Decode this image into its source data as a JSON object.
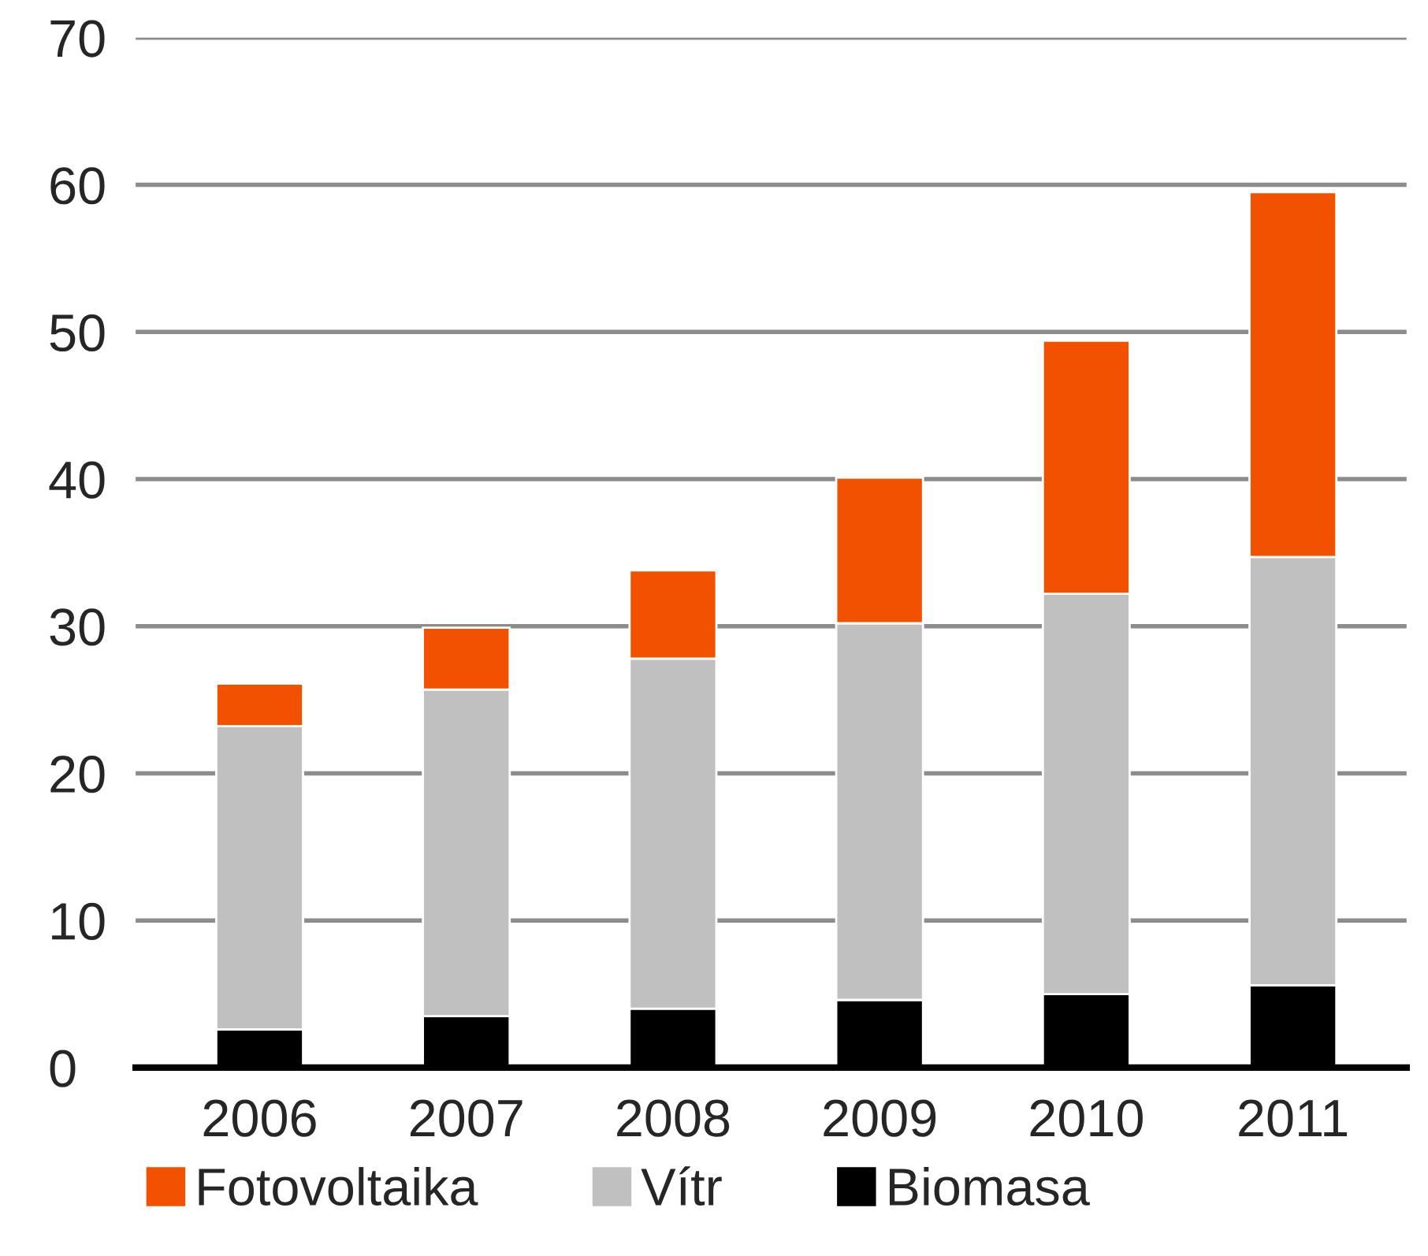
{
  "chart_data": {
    "type": "bar",
    "stacked": true,
    "categories": [
      "2006",
      "2007",
      "2008",
      "2009",
      "2010",
      "2011"
    ],
    "series": [
      {
        "name": "Biomasa",
        "color": "#000000",
        "values": [
          2.6,
          3.5,
          4.0,
          4.6,
          5.0,
          5.6
        ]
      },
      {
        "name": "Vítr",
        "color": "#c0c0c0",
        "values": [
          20.6,
          22.2,
          23.8,
          25.6,
          27.2,
          29.1
        ]
      },
      {
        "name": "Fotovoltaika",
        "color": "#f25200",
        "values": [
          2.9,
          4.2,
          6.0,
          9.9,
          17.2,
          24.8
        ]
      }
    ],
    "ylim": [
      0,
      70
    ],
    "yticks": [
      0,
      10,
      20,
      30,
      40,
      50,
      60,
      70
    ],
    "grid": "y",
    "legend": "bottom"
  }
}
